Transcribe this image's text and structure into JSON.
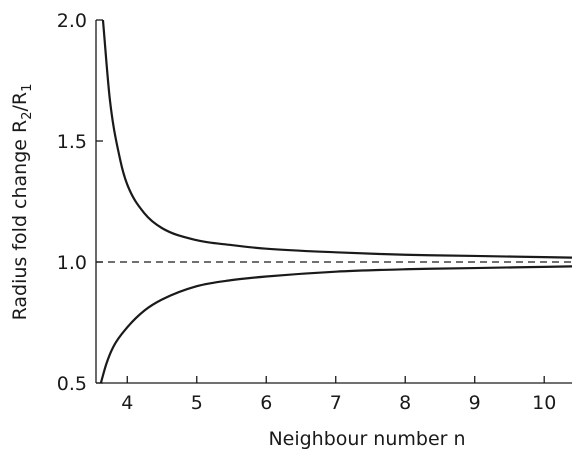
{
  "chart_data": {
    "type": "line",
    "title": "",
    "xlabel": "Neighbour number n",
    "ylabel": {
      "main": "Radius fold change R",
      "sub1": "2",
      "slash": "/R",
      "sub2": "1"
    },
    "xlim": [
      3.55,
      10.4
    ],
    "ylim": [
      0.5,
      2.0
    ],
    "xticks": [
      "4",
      "5",
      "6",
      "7",
      "8",
      "9",
      "10"
    ],
    "yticks": [
      "0.5",
      "1.0",
      "1.5",
      "2.0"
    ],
    "grid": false,
    "legend": "none",
    "series": [
      {
        "style": "solid",
        "color": "#1a1a1a",
        "x": [
          3.65,
          3.75,
          3.9,
          4.0,
          4.25,
          4.5,
          5.0,
          5.5,
          6.0,
          7.0,
          8.0,
          9.0,
          10.0,
          10.4
        ],
        "y": [
          2.0,
          1.67,
          1.42,
          1.32,
          1.2,
          1.14,
          1.09,
          1.07,
          1.055,
          1.04,
          1.03,
          1.025,
          1.02,
          1.018
        ]
      },
      {
        "style": "solid",
        "color": "#1a1a1a",
        "x": [
          3.62,
          3.7,
          3.8,
          4.0,
          4.25,
          4.5,
          5.0,
          5.5,
          6.0,
          7.0,
          8.0,
          9.0,
          10.0,
          10.4
        ],
        "y": [
          0.5,
          0.58,
          0.65,
          0.73,
          0.8,
          0.845,
          0.9,
          0.925,
          0.94,
          0.96,
          0.97,
          0.975,
          0.98,
          0.982
        ]
      },
      {
        "style": "dashed",
        "color": "#1a1a1a",
        "x": [
          3.55,
          10.4
        ],
        "y": [
          1.0,
          1.0
        ]
      }
    ]
  }
}
